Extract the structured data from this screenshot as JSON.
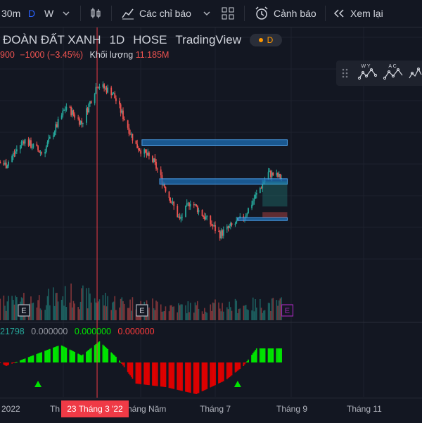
{
  "toolbar": {
    "interval": "30m",
    "interval_d": "D",
    "interval_w": "W",
    "indicators_label": "Các chỉ báo",
    "alerts_label": "Cảnh báo",
    "replay_label": "Xem lại"
  },
  "legend": {
    "symbol_title": "ĐOÀN ĐẤT XANH",
    "timeframe": "1D",
    "exchange": "HOSE",
    "source": "TradingView",
    "badge": "D",
    "price_fragment": "900",
    "change": "−1000 (−3.45%)",
    "volume_label": "Khối lượng",
    "volume_value": "11.185M"
  },
  "indicator": {
    "val1": "21798",
    "val2": "0.000000",
    "val3": "0.000000",
    "val4": "0.000000"
  },
  "drawing_panel": {
    "tool1_label": "W Y",
    "tool2_label": "A C"
  },
  "earnings_marker": "E",
  "xaxis": {
    "labels": [
      "2022",
      "Th",
      "háng Năm",
      "Tháng 7",
      "Tháng 9",
      "Tháng 11"
    ],
    "crosshair_date": "23 Tháng 3 '22"
  },
  "colors": {
    "background": "#131722",
    "up": "#26a69a",
    "down": "#ef5350",
    "osc_up": "#00e600",
    "osc_down": "#e00000",
    "zone_fill": "#1e6fb5",
    "earnings_active": "#9c27b0"
  },
  "chart_data": {
    "type": "candlestick",
    "price_pivots": [
      [
        "2021-11-15",
        20
      ],
      [
        "2021-12-10",
        26
      ],
      [
        "2022-01-05",
        23
      ],
      [
        "2022-01-20",
        32
      ],
      [
        "2022-02-05",
        27
      ],
      [
        "2022-02-25",
        44
      ],
      [
        "2022-03-10",
        38
      ],
      [
        "2022-03-23",
        52
      ],
      [
        "2022-04-05",
        49
      ],
      [
        "2022-04-25",
        30
      ],
      [
        "2022-05-10",
        24
      ],
      [
        "2022-06-01",
        3
      ],
      [
        "2022-06-10",
        10
      ],
      [
        "2022-07-05",
        -2
      ],
      [
        "2022-07-25",
        4
      ],
      [
        "2022-08-15",
        20
      ],
      [
        "2022-08-28",
        18
      ]
    ],
    "volume_profile": [
      [
        "2021-11-15",
        0.55
      ],
      [
        "2022-01-15",
        0.6
      ],
      [
        "2022-03-01",
        0.85
      ],
      [
        "2022-04-15",
        0.6
      ],
      [
        "2022-06-01",
        0.45
      ],
      [
        "2022-07-15",
        0.5
      ],
      [
        "2022-08-28",
        0.55
      ]
    ],
    "oscillator_pivots": [
      [
        "2021-11-15",
        3
      ],
      [
        "2021-12-20",
        2
      ],
      [
        "2022-01-05",
        -1
      ],
      [
        "2022-01-20",
        1
      ],
      [
        "2022-02-20",
        5
      ],
      [
        "2022-03-10",
        2
      ],
      [
        "2022-03-25",
        6
      ],
      [
        "2022-04-10",
        1
      ],
      [
        "2022-04-25",
        -6
      ],
      [
        "2022-05-20",
        -7
      ],
      [
        "2022-06-15",
        -9
      ],
      [
        "2022-07-10",
        -5
      ],
      [
        "2022-07-25",
        -1
      ],
      [
        "2022-08-05",
        4
      ],
      [
        "2022-08-28",
        4
      ]
    ],
    "signal_dates": [
      "2022-02-01",
      "2022-07-20"
    ],
    "earnings_dates": [
      "2022-01-20",
      "2022-04-30",
      "2022-08-31"
    ],
    "zones": [
      {
        "from": "2022-04-30",
        "to": "2022-08-31",
        "price": [
          30,
          32
        ]
      },
      {
        "from": "2022-05-15",
        "to": "2022-08-31",
        "price": [
          16,
          18
        ]
      },
      {
        "from": "2022-07-20",
        "to": "2022-08-31",
        "price": [
          3,
          4
        ]
      }
    ],
    "position": {
      "from": "2022-08-10",
      "to": "2022-08-31",
      "target": [
        8,
        17
      ],
      "stop": [
        4,
        6
      ]
    },
    "crosshair_date": "2022-03-23",
    "x_ticks": [
      "2022-01-01",
      "2022-03-01",
      "2022-05-01",
      "2022-07-01",
      "2022-09-01",
      "2022-11-01"
    ]
  }
}
